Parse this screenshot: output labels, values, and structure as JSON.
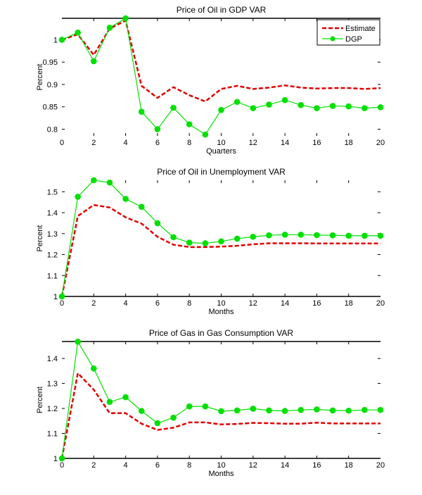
{
  "chart_data": [
    {
      "type": "line",
      "title": "Price of Oil in GDP VAR",
      "xlabel": "Quarters",
      "ylabel": "Percent",
      "x": [
        0,
        1,
        2,
        3,
        4,
        5,
        6,
        7,
        8,
        9,
        10,
        11,
        12,
        13,
        14,
        15,
        16,
        17,
        18,
        19,
        20
      ],
      "xlim": [
        0,
        20
      ],
      "ylim": [
        0.785,
        1.048
      ],
      "xticks": [
        0,
        2,
        4,
        6,
        8,
        10,
        12,
        14,
        16,
        18,
        20
      ],
      "xtick_labels": [
        "0",
        "2",
        "4",
        "6",
        "8",
        "10",
        "12",
        "14",
        "16",
        "18",
        "20"
      ],
      "yticks": [
        0.8,
        0.85,
        0.9,
        0.95,
        1
      ],
      "ytick_labels": [
        "0.8",
        "0.85",
        "0.9",
        "0.95",
        "1"
      ],
      "grid": false,
      "legend": "top-right",
      "series": [
        {
          "name": "Estimate",
          "style": "dashed",
          "color": "#e00000",
          "values": [
            1.0,
            1.012,
            0.966,
            1.025,
            1.043,
            0.897,
            0.87,
            0.894,
            0.876,
            0.862,
            0.89,
            0.897,
            0.89,
            0.893,
            0.898,
            0.893,
            0.891,
            0.892,
            0.892,
            0.89,
            0.892
          ]
        },
        {
          "name": "DGP",
          "style": "solid-markers",
          "color": "#00e000",
          "values": [
            1.0,
            1.016,
            0.952,
            1.027,
            1.048,
            0.839,
            0.8,
            0.848,
            0.811,
            0.788,
            0.843,
            0.861,
            0.847,
            0.855,
            0.865,
            0.854,
            0.847,
            0.852,
            0.851,
            0.847,
            0.849
          ]
        }
      ]
    },
    {
      "type": "line",
      "title": "Price of Oil in Unemployment VAR",
      "xlabel": "Months",
      "ylabel": "Percent",
      "x": [
        0,
        1,
        2,
        3,
        4,
        5,
        6,
        7,
        8,
        9,
        10,
        11,
        12,
        13,
        14,
        15,
        16,
        17,
        18,
        19,
        20
      ],
      "xlim": [
        0,
        20
      ],
      "ylim": [
        1.0,
        1.555
      ],
      "xticks": [
        0,
        2,
        4,
        6,
        8,
        10,
        12,
        14,
        16,
        18,
        20
      ],
      "xtick_labels": [
        "0",
        "2",
        "4",
        "6",
        "8",
        "10",
        "12",
        "14",
        "16",
        "18",
        "20"
      ],
      "yticks": [
        1,
        1.1,
        1.2,
        1.3,
        1.4,
        1.5
      ],
      "ytick_labels": [
        "1",
        "1.1",
        "1.2",
        "1.3",
        "1.4",
        "1.5"
      ],
      "grid": false,
      "series": [
        {
          "name": "Estimate",
          "style": "dashed",
          "color": "#e00000",
          "values": [
            1.0,
            1.384,
            1.437,
            1.425,
            1.378,
            1.348,
            1.285,
            1.247,
            1.236,
            1.236,
            1.238,
            1.242,
            1.249,
            1.254,
            1.254,
            1.254,
            1.253,
            1.253,
            1.253,
            1.253,
            1.253
          ]
        },
        {
          "name": "DGP",
          "style": "solid-markers",
          "color": "#00e000",
          "values": [
            1.0,
            1.476,
            1.555,
            1.544,
            1.466,
            1.428,
            1.35,
            1.283,
            1.257,
            1.254,
            1.263,
            1.276,
            1.285,
            1.292,
            1.295,
            1.295,
            1.293,
            1.292,
            1.29,
            1.29,
            1.29
          ]
        }
      ]
    },
    {
      "type": "line",
      "title": "Price of Gas in Gas Consumption VAR",
      "xlabel": "Months",
      "ylabel": "Percent",
      "x": [
        0,
        1,
        2,
        3,
        4,
        5,
        6,
        7,
        8,
        9,
        10,
        11,
        12,
        13,
        14,
        15,
        16,
        17,
        18,
        19,
        20
      ],
      "xlim": [
        0,
        20
      ],
      "ylim": [
        1.0,
        1.468
      ],
      "xticks": [
        0,
        2,
        4,
        6,
        8,
        10,
        12,
        14,
        16,
        18,
        20
      ],
      "xtick_labels": [
        "0",
        "2",
        "4",
        "6",
        "8",
        "10",
        "12",
        "14",
        "16",
        "18",
        "20"
      ],
      "yticks": [
        1,
        1.1,
        1.2,
        1.3,
        1.4
      ],
      "ytick_labels": [
        "1",
        "1.1",
        "1.2",
        "1.3",
        "1.4"
      ],
      "grid": false,
      "series": [
        {
          "name": "Estimate",
          "style": "dashed",
          "color": "#e00000",
          "values": [
            1.0,
            1.341,
            1.275,
            1.181,
            1.181,
            1.139,
            1.114,
            1.123,
            1.144,
            1.144,
            1.136,
            1.138,
            1.142,
            1.141,
            1.139,
            1.139,
            1.143,
            1.14,
            1.14,
            1.14,
            1.14
          ]
        },
        {
          "name": "DGP",
          "style": "solid-markers",
          "color": "#00e000",
          "values": [
            1.0,
            1.467,
            1.36,
            1.226,
            1.245,
            1.19,
            1.141,
            1.163,
            1.208,
            1.208,
            1.189,
            1.192,
            1.199,
            1.192,
            1.19,
            1.194,
            1.196,
            1.192,
            1.191,
            1.194,
            1.194
          ]
        }
      ]
    }
  ],
  "legend": {
    "items": [
      {
        "label": "Estimate"
      },
      {
        "label": "DGP"
      }
    ]
  }
}
